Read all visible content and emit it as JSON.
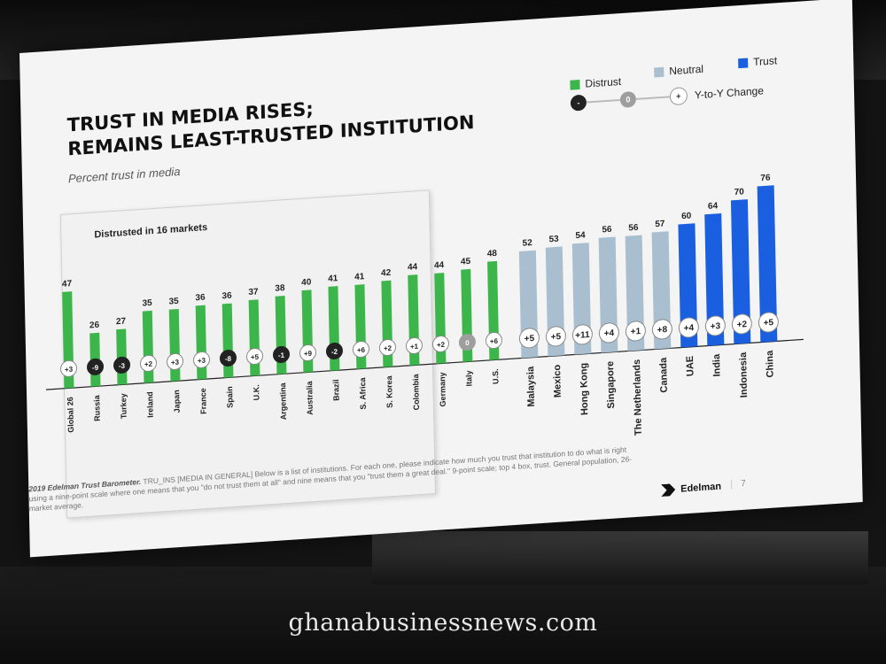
{
  "slide": {
    "title_line1": "Trust in media rises;",
    "title_line2": "remains least-trusted institution",
    "subtitle": "Percent trust in media",
    "distrust_box_label": "Distrusted in 16 markets",
    "footnote_source": "2019 Edelman Trust Barometer.",
    "footnote_body": "TRU_INS [MEDIA IN GENERAL] Below is a list of institutions. For each one, please indicate how much you trust that institution to do what is right using a nine-point scale where one means that you \"do not trust them at all\" and nine means that you \"trust them a great deal.\" 9-point scale; top 4 box, trust. General population, 26-market average.",
    "logo_text": "Edelman",
    "page_number": "7"
  },
  "legend": {
    "distrust": "Distrust",
    "neutral": "Neutral",
    "trust": "Trust",
    "change_label": "Y-to-Y Change",
    "change_neg": "-",
    "change_zero": "0",
    "change_pos": "+"
  },
  "colors": {
    "distrust": "#3cb54a",
    "neutral": "#a9bfcf",
    "trust": "#1a5fe0",
    "change_negative": "#222222",
    "change_zero": "#9e9e9e",
    "change_positive": "#ffffff"
  },
  "chart_data": {
    "type": "bar",
    "title": "Trust in media rises; remains least-trusted institution",
    "ylabel": "Percent trust in media",
    "ylim": [
      0,
      80
    ],
    "categories": [
      "Global 26",
      "Russia",
      "Turkey",
      "Ireland",
      "Japan",
      "France",
      "Spain",
      "U.K.",
      "Argentina",
      "Australia",
      "Brazil",
      "S. Africa",
      "S. Korea",
      "Colombia",
      "Germany",
      "Italy",
      "U.S.",
      "Malaysia",
      "Mexico",
      "Hong Kong",
      "Singapore",
      "The Netherlands",
      "Canada",
      "UAE",
      "India",
      "Indonesia",
      "China"
    ],
    "values": [
      47,
      26,
      27,
      35,
      35,
      36,
      36,
      37,
      38,
      40,
      41,
      41,
      42,
      44,
      44,
      45,
      48,
      52,
      53,
      54,
      56,
      56,
      57,
      60,
      64,
      70,
      76
    ],
    "changes": [
      "+3",
      "-9",
      "-3",
      "+2",
      "+3",
      "+3",
      "-8",
      "+5",
      "-1",
      "+9",
      "-2",
      "+6",
      "+2",
      "+1",
      "+2",
      "0",
      "+6",
      "+5",
      "+5",
      "+11",
      "+4",
      "+1",
      "+8",
      "+4",
      "+3",
      "+2",
      "+5"
    ],
    "classes": [
      "distrust",
      "distrust",
      "distrust",
      "distrust",
      "distrust",
      "distrust",
      "distrust",
      "distrust",
      "distrust",
      "distrust",
      "distrust",
      "distrust",
      "distrust",
      "distrust",
      "distrust",
      "distrust",
      "distrust",
      "neutral",
      "neutral",
      "neutral",
      "neutral",
      "neutral",
      "neutral",
      "trust",
      "trust",
      "trust",
      "trust"
    ],
    "legend_position": "top-right",
    "grid": false
  },
  "watermark": "ghanabusinessnews.com"
}
